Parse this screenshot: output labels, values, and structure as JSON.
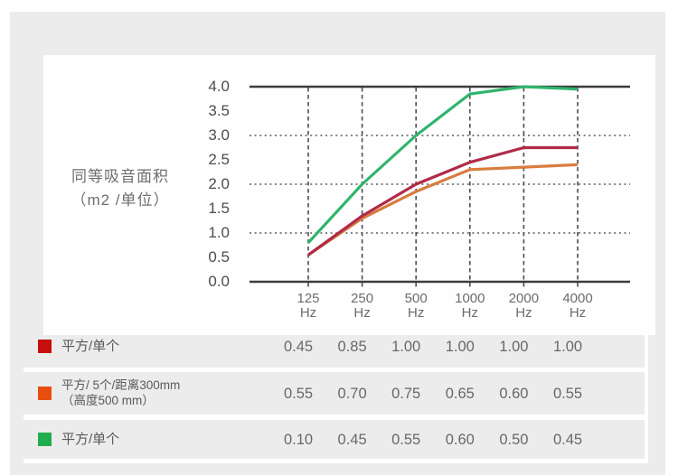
{
  "chart_data": {
    "type": "line",
    "ylabel_lines": [
      "同等吸音面积",
      "（m2 /单位）"
    ],
    "yticks": [
      "0.0",
      "0.5",
      "1.0",
      "1.5",
      "2.0",
      "2.5",
      "3.0",
      "3.5",
      "4.0"
    ],
    "ylim": [
      0,
      4
    ],
    "x_categories": [
      {
        "freq": "125",
        "unit": "Hz"
      },
      {
        "freq": "250",
        "unit": "Hz"
      },
      {
        "freq": "500",
        "unit": "Hz"
      },
      {
        "freq": "1000",
        "unit": "Hz"
      },
      {
        "freq": "2000",
        "unit": "Hz"
      },
      {
        "freq": "4000",
        "unit": "Hz"
      }
    ],
    "grid": {
      "solid_lines_at": [
        0.0,
        4.0
      ],
      "dotted_lines_at": [
        1.0,
        2.0,
        3.0
      ],
      "vertical_dashed_at_each_category": true,
      "legend_position": "table-below"
    },
    "series": [
      {
        "name": "平方/ 5个/距离300mm（高度500 mm）",
        "color": "#d97c3f",
        "values": [
          0.55,
          1.3,
          1.85,
          2.3,
          2.35,
          2.4
        ]
      },
      {
        "name": "平方/单个",
        "color": "#b02b48",
        "values": [
          0.55,
          1.35,
          2.0,
          2.45,
          2.75,
          2.75
        ]
      },
      {
        "name": "平方/单个",
        "color": "#30b46c",
        "values": [
          0.8,
          2.0,
          3.0,
          3.85,
          4.0,
          3.95
        ]
      }
    ]
  },
  "table": {
    "rows": [
      {
        "swatch_color": "#c60e0e",
        "label": "平方/单个",
        "label_line2": "",
        "values": [
          "0.45",
          "0.85",
          "1.00",
          "1.00",
          "1.00",
          "1.00"
        ]
      },
      {
        "swatch_color": "#e84e10",
        "label": "平方/ 5个/距离300mm",
        "label_line2": "（高度500 mm）",
        "values": [
          "0.55",
          "0.70",
          "0.75",
          "0.65",
          "0.60",
          "0.55"
        ]
      },
      {
        "swatch_color": "#1fae4d",
        "label": "平方/单个",
        "label_line2": "",
        "values": [
          "0.10",
          "0.45",
          "0.55",
          "0.60",
          "0.50",
          "0.45"
        ]
      }
    ]
  }
}
